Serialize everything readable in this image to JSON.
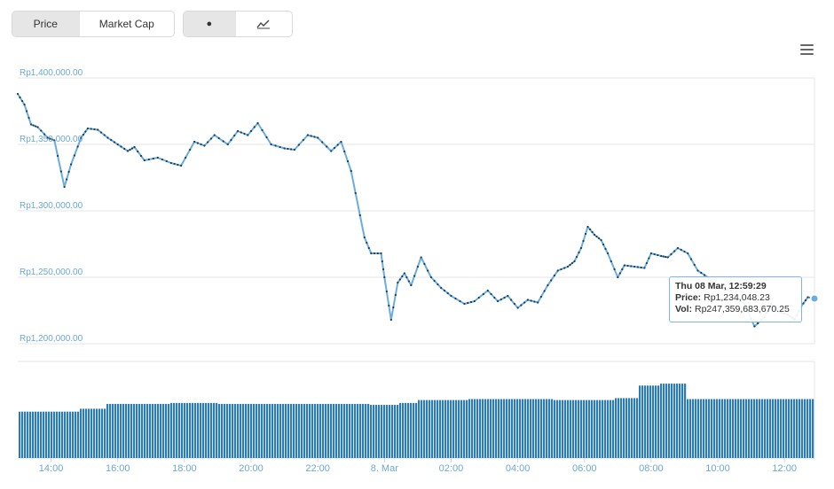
{
  "controls": {
    "metric_tabs": [
      {
        "label": "Price",
        "active": true
      },
      {
        "label": "Market Cap",
        "active": false
      }
    ],
    "type_tabs": [
      {
        "icon": "dot-icon",
        "label": "●",
        "active": true
      },
      {
        "icon": "line-chart-icon",
        "active": false
      }
    ],
    "menu_icon": "hamburger-menu-icon"
  },
  "tooltip": {
    "date": "Thu 08 Mar, 12:59:29",
    "price_label": "Price:",
    "price_value": "Rp1,234,048.23",
    "vol_label": "Vol:",
    "vol_value": "Rp247,359,683,670.25"
  },
  "colors": {
    "line": "#6aaddf",
    "volume": "#2b7bb9",
    "axis_text": "#6aa8d6",
    "tooltip_border": "#7cb5ec"
  },
  "chart_data": {
    "type": "line",
    "y_ticks": [
      "Rp1,400,000.00",
      "Rp1,350,000.00",
      "Rp1,300,000.00",
      "Rp1,250,000.00",
      "Rp1,200,000.00"
    ],
    "y_tick_values": [
      1400000,
      1350000,
      1300000,
      1250000,
      1200000
    ],
    "ylim": [
      1200000,
      1400000
    ],
    "x_ticks": [
      "14:00",
      "16:00",
      "18:00",
      "20:00",
      "22:00",
      "8. Mar",
      "02:00",
      "04:00",
      "06:00",
      "08:00",
      "10:00",
      "12:00"
    ],
    "x_tick_hours": [
      14,
      16,
      18,
      20,
      22,
      24,
      26,
      28,
      30,
      32,
      34,
      36
    ],
    "xlim_hours": [
      13.0,
      36.9
    ],
    "price_series": {
      "name": "Price",
      "hours": [
        13.0,
        13.2,
        13.4,
        13.6,
        13.9,
        14.1,
        14.4,
        14.6,
        14.9,
        15.1,
        15.4,
        15.7,
        16.0,
        16.3,
        16.5,
        16.8,
        17.2,
        17.6,
        17.9,
        18.3,
        18.6,
        18.9,
        19.3,
        19.6,
        19.9,
        20.2,
        20.6,
        21.0,
        21.3,
        21.7,
        22.0,
        22.4,
        22.7,
        23.0,
        23.4,
        23.6,
        23.9,
        24.0,
        24.2,
        24.4,
        24.6,
        24.8,
        25.1,
        25.4,
        25.7,
        26.0,
        26.4,
        26.7,
        27.1,
        27.4,
        27.7,
        28.0,
        28.3,
        28.6,
        28.9,
        29.2,
        29.5,
        29.7,
        29.9,
        30.1,
        30.3,
        30.5,
        30.7,
        31.0,
        31.2,
        31.5,
        31.8,
        32.0,
        32.3,
        32.5,
        32.8,
        33.1,
        33.4,
        33.7,
        34.0,
        34.4,
        34.8,
        35.1,
        35.4,
        35.6,
        35.8,
        36.1,
        36.3,
        36.5,
        36.7,
        36.9
      ],
      "values": [
        1388000,
        1380000,
        1365000,
        1363000,
        1355000,
        1353000,
        1318000,
        1335000,
        1355000,
        1362000,
        1361000,
        1355000,
        1350000,
        1345000,
        1348000,
        1338000,
        1340000,
        1336000,
        1334000,
        1352000,
        1349000,
        1357000,
        1350000,
        1360000,
        1357000,
        1366000,
        1350000,
        1347000,
        1346000,
        1357000,
        1355000,
        1345000,
        1352000,
        1330000,
        1280000,
        1268000,
        1268000,
        1250000,
        1218000,
        1246000,
        1253000,
        1244000,
        1265000,
        1250000,
        1242000,
        1236000,
        1230000,
        1232000,
        1240000,
        1232000,
        1236000,
        1227000,
        1233000,
        1231000,
        1244000,
        1255000,
        1258000,
        1262000,
        1272000,
        1288000,
        1282000,
        1278000,
        1268000,
        1250000,
        1259000,
        1258000,
        1257000,
        1268000,
        1266000,
        1265000,
        1272000,
        1268000,
        1255000,
        1250000,
        1242000,
        1240000,
        1230000,
        1213000,
        1220000,
        1230000,
        1224000,
        1222000,
        1218000,
        1228000,
        1235000,
        1234000
      ]
    },
    "volume_series": {
      "name": "Vol",
      "hours": [
        13.0,
        14.8,
        15.6,
        17.5,
        19.0,
        22.0,
        23.5,
        24.4,
        25.0,
        26.5,
        29.0,
        30.9,
        31.0,
        31.6,
        32.2,
        32.9,
        33.0,
        36.9
      ],
      "values": [
        48,
        51,
        56,
        57,
        56,
        56,
        55,
        57,
        60,
        61,
        60,
        62,
        62,
        75,
        77,
        77,
        61,
        62
      ]
    }
  }
}
